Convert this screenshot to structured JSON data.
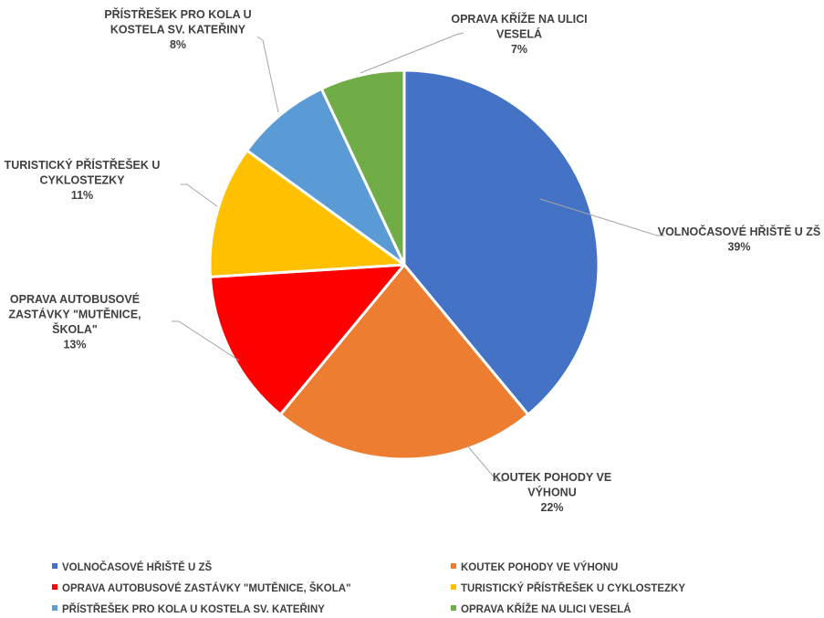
{
  "chart_data": {
    "type": "pie",
    "title": "",
    "slices": [
      {
        "label": "VOLNOČASOVÉ HŘIŠTĚ U ZŠ",
        "value": 39,
        "value_label": "39%",
        "color": "#4472C4",
        "label_lines": [
          "VOLNOČASOVÉ HŘIŠTĚ U ZŠ"
        ]
      },
      {
        "label": "KOUTEK POHODY VE VÝHONU",
        "value": 22,
        "value_label": "22%",
        "color": "#ED7D31",
        "label_lines": [
          "KOUTEK POHODY VE",
          "VÝHONU"
        ]
      },
      {
        "label": "OPRAVA AUTOBUSOVÉ ZASTÁVKY \"MUTĚNICE, ŠKOLA\"",
        "value": 13,
        "value_label": "13%",
        "color": "#FF0000",
        "label_lines": [
          "OPRAVA AUTOBUSOVÉ",
          "ZASTÁVKY \"MUTĚNICE,",
          "ŠKOLA\""
        ]
      },
      {
        "label": "TURISTICKÝ PŘÍSTŘEŠEK U CYKLOSTEZKY",
        "value": 11,
        "value_label": "11%",
        "color": "#FFC000",
        "label_lines": [
          "TURISTICKÝ PŘÍSTŘEŠEK U",
          "CYKLOSTEZKY"
        ]
      },
      {
        "label": "PŘÍSTŘEŠEK PRO KOLA U KOSTELA SV. KATEŘINY",
        "value": 8,
        "value_label": "8%",
        "color": "#5B9BD5",
        "label_lines": [
          "PŘÍSTŘEŠEK PRO KOLA U",
          "KOSTELA SV. KATEŘINY"
        ]
      },
      {
        "label": "OPRAVA KŘÍŽE NA ULICI VESELÁ",
        "value": 7,
        "value_label": "7%",
        "color": "#70AD47",
        "label_lines": [
          "OPRAVA KŘÍŽE NA ULICI",
          "VESELÁ"
        ]
      }
    ],
    "legend": {
      "position": "bottom",
      "items": [
        {
          "label": "VOLNOČASOVÉ HŘIŠTĚ U ZŠ",
          "color": "#4472C4"
        },
        {
          "label": "KOUTEK POHODY VE VÝHONU",
          "color": "#ED7D31"
        },
        {
          "label": "OPRAVA AUTOBUSOVÉ ZASTÁVKY \"MUTĚNICE, ŠKOLA\"",
          "color": "#FF0000"
        },
        {
          "label": "TURISTICKÝ PŘÍSTŘEŠEK U CYKLOSTEZKY",
          "color": "#FFC000"
        },
        {
          "label": "PŘÍSTŘEŠEK PRO KOLA U KOSTELA SV. KATEŘINY",
          "color": "#5B9BD5"
        },
        {
          "label": "OPRAVA KŘÍŽE NA ULICI VESELÁ",
          "color": "#70AD47"
        }
      ]
    }
  }
}
